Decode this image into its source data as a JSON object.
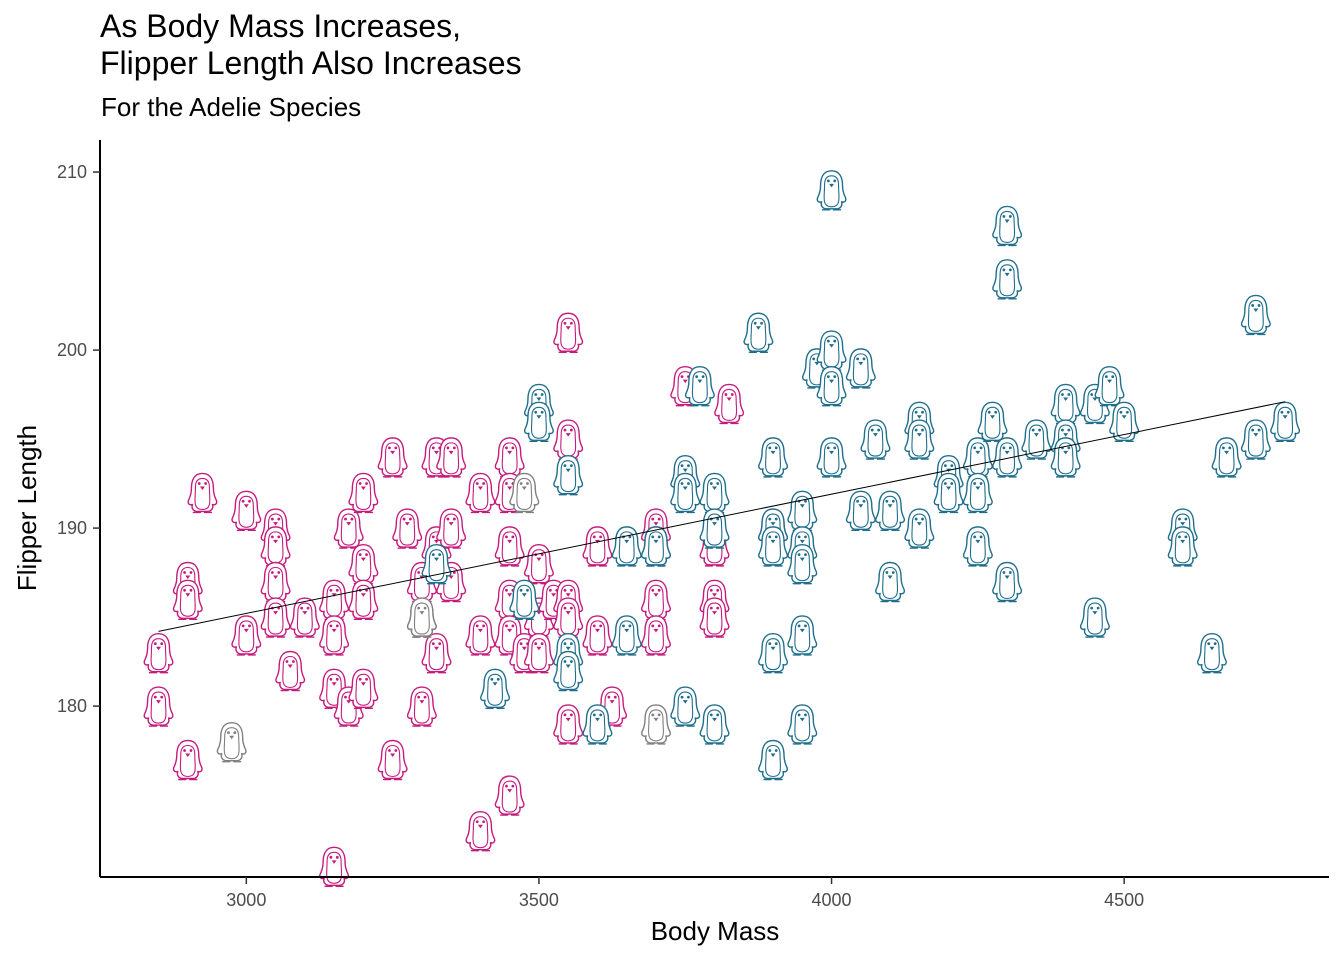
{
  "chart_data": {
    "type": "scatter",
    "title": "As Body Mass Increases,\nFlipper Length Also Increases",
    "subtitle": "For the Adelie Species",
    "xlabel": "Body Mass",
    "ylabel": "Flipper Length",
    "xlim": [
      2750,
      4850
    ],
    "ylim": [
      170.4,
      211.8
    ],
    "x_ticks": [
      3000,
      3500,
      4000,
      4500
    ],
    "y_ticks": [
      180,
      190,
      200,
      210
    ],
    "grid": false,
    "marker": "penguin-icon",
    "trend_line": {
      "x": [
        2850,
        4775
      ],
      "y": [
        184.2,
        197.1
      ]
    },
    "series": [
      {
        "color": "#c51b7d",
        "points": [
          [
            2850,
            183
          ],
          [
            2850,
            180
          ],
          [
            2900,
            187
          ],
          [
            2900,
            186
          ],
          [
            2900,
            177
          ],
          [
            2925,
            192
          ],
          [
            3000,
            191
          ],
          [
            3000,
            184
          ],
          [
            3050,
            190
          ],
          [
            3050,
            189
          ],
          [
            3050,
            187
          ],
          [
            3050,
            185
          ],
          [
            3075,
            182
          ],
          [
            3100,
            185
          ],
          [
            3150,
            186
          ],
          [
            3150,
            184
          ],
          [
            3150,
            181
          ],
          [
            3150,
            171
          ],
          [
            3175,
            190
          ],
          [
            3175,
            180
          ],
          [
            3200,
            192
          ],
          [
            3200,
            188
          ],
          [
            3200,
            186
          ],
          [
            3200,
            181
          ],
          [
            3250,
            194
          ],
          [
            3250,
            177
          ],
          [
            3275,
            190
          ],
          [
            3300,
            185
          ],
          [
            3300,
            187
          ],
          [
            3300,
            180
          ],
          [
            3325,
            194
          ],
          [
            3325,
            189
          ],
          [
            3325,
            183
          ],
          [
            3350,
            194
          ],
          [
            3350,
            190
          ],
          [
            3350,
            187
          ],
          [
            3400,
            184
          ],
          [
            3400,
            173
          ],
          [
            3400,
            192
          ],
          [
            3450,
            194
          ],
          [
            3450,
            192
          ],
          [
            3450,
            189
          ],
          [
            3450,
            186
          ],
          [
            3450,
            184
          ],
          [
            3450,
            175
          ],
          [
            3475,
            183
          ],
          [
            3500,
            188
          ],
          [
            3500,
            185
          ],
          [
            3500,
            183
          ],
          [
            3525,
            186
          ],
          [
            3550,
            201
          ],
          [
            3550,
            195
          ],
          [
            3550,
            186
          ],
          [
            3550,
            185
          ],
          [
            3550,
            179
          ],
          [
            3600,
            189
          ],
          [
            3600,
            184
          ],
          [
            3625,
            180
          ],
          [
            3700,
            190
          ],
          [
            3700,
            189
          ],
          [
            3700,
            186
          ],
          [
            3700,
            184
          ],
          [
            3750,
            198
          ],
          [
            3800,
            189
          ],
          [
            3800,
            186
          ],
          [
            3800,
            185
          ],
          [
            3825,
            197
          ],
          [
            3900,
            190
          ]
        ]
      },
      {
        "color": "#1f6e8c",
        "points": [
          [
            3325,
            188
          ],
          [
            3425,
            181
          ],
          [
            3475,
            186
          ],
          [
            3500,
            197
          ],
          [
            3500,
            196
          ],
          [
            3550,
            193
          ],
          [
            3550,
            183
          ],
          [
            3550,
            182
          ],
          [
            3600,
            179
          ],
          [
            3650,
            184
          ],
          [
            3650,
            189
          ],
          [
            3700,
            189
          ],
          [
            3750,
            193
          ],
          [
            3750,
            192
          ],
          [
            3750,
            180
          ],
          [
            3775,
            198
          ],
          [
            3800,
            192
          ],
          [
            3800,
            190
          ],
          [
            3800,
            179
          ],
          [
            3875,
            201
          ],
          [
            3900,
            194
          ],
          [
            3900,
            190
          ],
          [
            3900,
            189
          ],
          [
            3900,
            183
          ],
          [
            3900,
            177
          ],
          [
            3950,
            191
          ],
          [
            3950,
            189
          ],
          [
            3950,
            188
          ],
          [
            3950,
            184
          ],
          [
            3950,
            179
          ],
          [
            3975,
            199
          ],
          [
            4000,
            209
          ],
          [
            4000,
            200
          ],
          [
            4000,
            198
          ],
          [
            4000,
            194
          ],
          [
            4050,
            199
          ],
          [
            4050,
            191
          ],
          [
            4075,
            195
          ],
          [
            4100,
            191
          ],
          [
            4100,
            187
          ],
          [
            4150,
            196
          ],
          [
            4150,
            195
          ],
          [
            4150,
            190
          ],
          [
            4200,
            193
          ],
          [
            4200,
            192
          ],
          [
            4250,
            194
          ],
          [
            4250,
            192
          ],
          [
            4250,
            189
          ],
          [
            4275,
            196
          ],
          [
            4300,
            207
          ],
          [
            4300,
            204
          ],
          [
            4300,
            194
          ],
          [
            4300,
            187
          ],
          [
            4350,
            195
          ],
          [
            4400,
            197
          ],
          [
            4400,
            195
          ],
          [
            4400,
            194
          ],
          [
            4450,
            197
          ],
          [
            4450,
            185
          ],
          [
            4475,
            198
          ],
          [
            4500,
            196
          ],
          [
            4600,
            190
          ],
          [
            4600,
            189
          ],
          [
            4650,
            183
          ],
          [
            4675,
            194
          ],
          [
            4725,
            202
          ],
          [
            4725,
            195
          ],
          [
            4775,
            196
          ]
        ]
      },
      {
        "color": "#808080",
        "points": [
          [
            2975,
            178
          ],
          [
            3300,
            185
          ],
          [
            3475,
            192
          ],
          [
            3700,
            179
          ]
        ]
      }
    ]
  }
}
